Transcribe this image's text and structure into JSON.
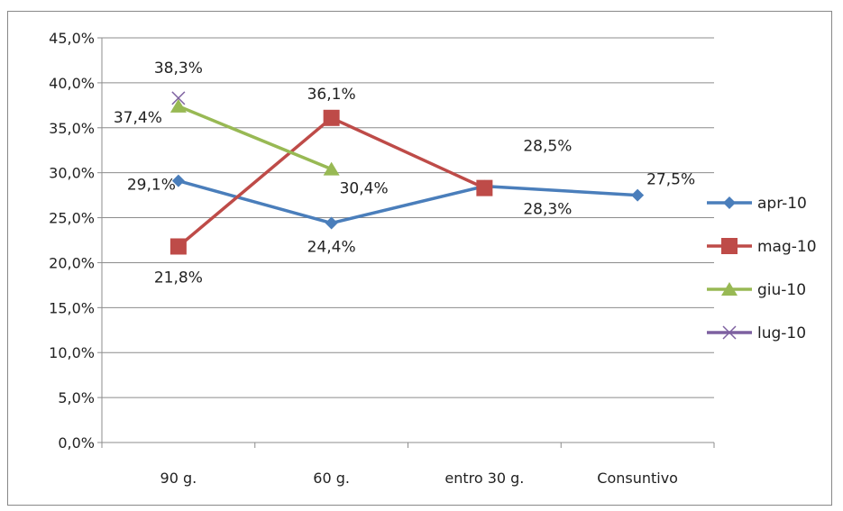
{
  "chart_data": {
    "type": "line",
    "categories": [
      "90 g.",
      "60 g.",
      "entro 30 g.",
      "Consuntivo"
    ],
    "ylim": [
      0,
      45
    ],
    "ytick_step": 5,
    "ytick_labels": [
      "0,0%",
      "5,0%",
      "10,0%",
      "15,0%",
      "20,0%",
      "25,0%",
      "30,0%",
      "35,0%",
      "40,0%",
      "45,0%"
    ],
    "grid": true,
    "legend_position": "right",
    "series": [
      {
        "name": "apr-10",
        "color": "#4a7ebb",
        "marker": "diamond",
        "values": [
          29.1,
          24.4,
          28.5,
          27.5
        ],
        "labels": [
          "29,1%",
          "24,4%",
          "28,5%",
          "27,5%"
        ]
      },
      {
        "name": "mag-10",
        "color": "#be4b48",
        "marker": "square",
        "values": [
          21.8,
          36.1,
          28.3,
          null
        ],
        "labels": [
          "21,8%",
          "36,1%",
          "28,3%",
          null
        ]
      },
      {
        "name": "giu-10",
        "color": "#98b954",
        "marker": "triangle",
        "values": [
          37.4,
          30.4,
          null,
          null
        ],
        "labels": [
          "37,4%",
          "30,4%",
          null,
          null
        ]
      },
      {
        "name": "lug-10",
        "color": "#7d60a0",
        "marker": "x",
        "values": [
          38.3,
          null,
          null,
          null
        ],
        "labels": [
          "38,3%",
          null,
          null,
          null
        ]
      }
    ]
  }
}
